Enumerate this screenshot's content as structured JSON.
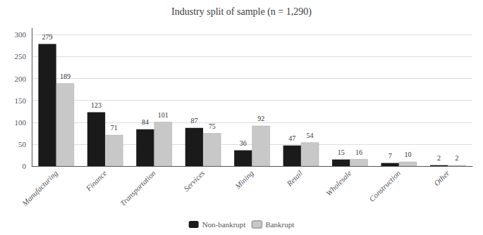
{
  "chart_data": {
    "type": "bar",
    "title": "Industry split of sample (n = 1,290)",
    "categories": [
      "Manufacturing",
      "Finance",
      "Transportation",
      "Services",
      "Mining",
      "Retail",
      "Wholesale",
      "Construction",
      "Other"
    ],
    "series": [
      {
        "name": "Non-bankrupt",
        "color": "#1a1a1a",
        "values": [
          279,
          123,
          84,
          87,
          36,
          47,
          15,
          7,
          2
        ]
      },
      {
        "name": "Bankrupt",
        "color": "#c8c8c8",
        "values": [
          189,
          71,
          101,
          75,
          92,
          54,
          16,
          10,
          2
        ]
      }
    ],
    "ylim": [
      0,
      315
    ],
    "yticks": [
      0,
      50,
      100,
      150,
      200,
      250,
      300
    ],
    "grid": true,
    "legend": "bottom",
    "data_labels": true
  }
}
